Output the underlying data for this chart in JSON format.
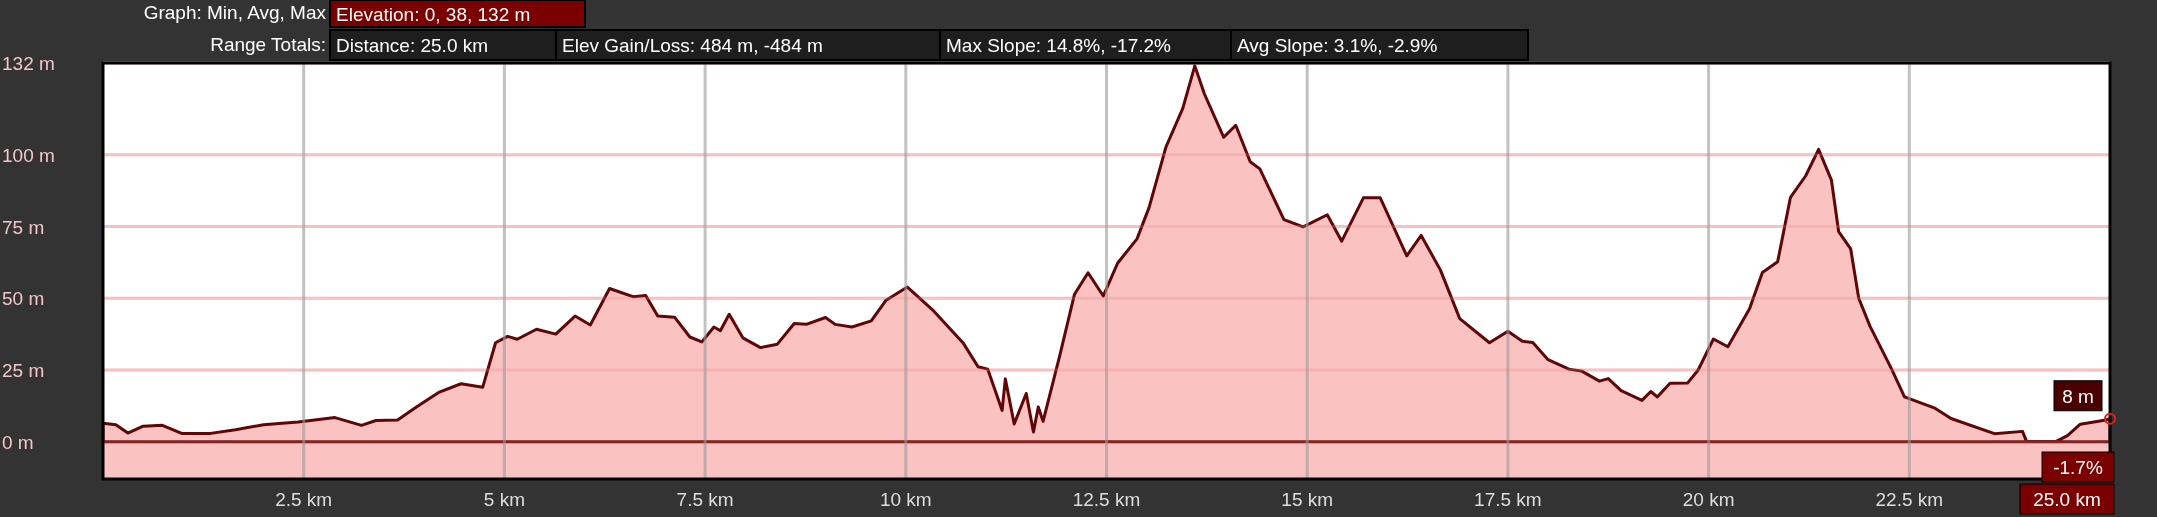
{
  "chart_data": {
    "type": "area",
    "annotations": [
      "Graph: Min, Avg, Max",
      "Elevation: 0, 38, 132 m",
      "Range Totals:",
      "Distance: 25.0 km",
      "Elev Gain/Loss: 484 m, -484 m",
      "Max Slope: 14.8%, -17.2%",
      "Avg Slope: 3.1%, -2.9%",
      {
        "text": "8 m",
        "x": 25,
        "y": 8
      },
      "-1.7%",
      "25.0 km"
    ],
    "xlim": [
      0,
      25
    ],
    "xticks": [
      {
        "value": 2.5,
        "label": "2.5 km"
      },
      {
        "value": 5,
        "label": "5 km"
      },
      {
        "value": 7.5,
        "label": "7.5 km"
      },
      {
        "value": 10,
        "label": "10 km"
      },
      {
        "value": 12.5,
        "label": "12.5 km"
      },
      {
        "value": 15,
        "label": "15 km"
      },
      {
        "value": 17.5,
        "label": "17.5 km"
      },
      {
        "value": 20,
        "label": "20 km"
      },
      {
        "value": 22.5,
        "label": "22.5 km"
      }
    ],
    "ylim": [
      -13,
      132
    ],
    "yticks": [
      {
        "value": 0,
        "label": "0 m"
      },
      {
        "value": 25,
        "label": "25 m"
      },
      {
        "value": 50,
        "label": "50 m"
      },
      {
        "value": 75,
        "label": "75 m"
      },
      {
        "value": 100,
        "label": "100 m"
      },
      {
        "value": 132,
        "label": "132 m"
      }
    ],
    "grid": true,
    "series": [
      {
        "color": "#fbc2c2",
        "x": [
          0,
          0.16,
          0.31,
          0.5,
          0.74,
          0.98,
          1.34,
          1.65,
          2.0,
          2.43,
          2.89,
          3.22,
          3.4,
          3.67,
          3.89,
          4.19,
          4.46,
          4.73,
          4.89,
          5.04,
          5.16,
          5.4,
          5.64,
          5.88,
          6.07,
          6.31,
          6.61,
          6.76,
          6.91,
          7.12,
          7.31,
          7.46,
          7.61,
          7.69,
          7.8,
          7.97,
          8.19,
          8.4,
          8.61,
          8.76,
          9.0,
          9.12,
          9.33,
          9.57,
          9.75,
          10.02,
          10.35,
          10.72,
          10.9,
          11.02,
          11.2,
          11.24,
          11.35,
          11.5,
          11.59,
          11.65,
          11.71,
          11.92,
          12.1,
          12.27,
          12.46,
          12.64,
          12.88,
          13.03,
          13.24,
          13.45,
          13.6,
          13.72,
          13.96,
          14.11,
          14.29,
          14.41,
          14.71,
          14.95,
          15.25,
          15.43,
          15.7,
          15.91,
          16.24,
          16.42,
          16.66,
          16.9,
          17.27,
          17.5,
          17.68,
          17.81,
          18.0,
          18.26,
          18.42,
          18.64,
          18.75,
          18.91,
          19.17,
          19.28,
          19.36,
          19.52,
          19.74,
          19.87,
          20.06,
          20.24,
          20.51,
          20.67,
          20.86,
          21.02,
          21.21,
          21.37,
          21.53,
          21.62,
          21.77,
          21.87,
          22.01,
          22.28,
          22.44,
          22.81,
          23.02,
          23.56,
          23.91,
          23.96,
          24.33,
          24.47,
          24.63,
          24.95,
          25
        ],
        "values": [
          6.4,
          5.9,
          3,
          5.4,
          5.7,
          2.9,
          2.9,
          4.2,
          5.9,
          6.9,
          8.4,
          5.7,
          7.4,
          7.6,
          11.8,
          17.3,
          20.2,
          19,
          34.5,
          36.7,
          35.7,
          39.2,
          37.5,
          43.8,
          40.7,
          53.4,
          50.5,
          51,
          43.8,
          43.4,
          36.5,
          34.8,
          40,
          38.7,
          44.4,
          36.2,
          32.8,
          34,
          41.2,
          40.9,
          43.3,
          40.9,
          40,
          42.1,
          49.2,
          53.9,
          45.5,
          34.2,
          26.1,
          25.3,
          10.9,
          21.9,
          6.2,
          16.8,
          3.4,
          12.1,
          7.1,
          30.3,
          51.3,
          58.9,
          50.8,
          62.3,
          70.7,
          81.6,
          102.7,
          116.2,
          131,
          121.2,
          106.1,
          110.3,
          97.6,
          95.1,
          77.4,
          74.9,
          79.1,
          69.9,
          85,
          85,
          64.8,
          71.9,
          59.8,
          42.9,
          34.5,
          38.5,
          35,
          34.6,
          28.6,
          25.3,
          24.6,
          21.1,
          22,
          17.8,
          14.4,
          17.5,
          15.6,
          20.4,
          20.5,
          25,
          35.8,
          33.1,
          46.3,
          59,
          62.7,
          85.2,
          92.7,
          101.9,
          91.2,
          73.2,
          67.2,
          50,
          40.3,
          25.3,
          15.6,
          11.8,
          8.1,
          2.8,
          3.6,
          0.1,
          0.1,
          2.1,
          6.1,
          7.6,
          8
        ]
      }
    ]
  }
}
